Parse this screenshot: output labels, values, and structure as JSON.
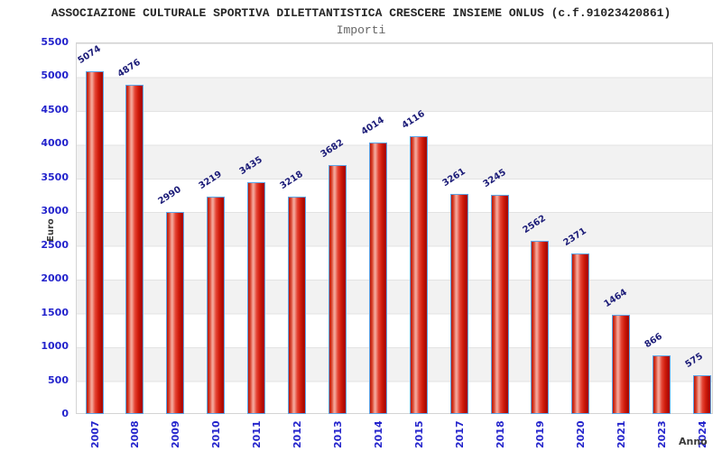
{
  "title": "ASSOCIAZIONE CULTURALE SPORTIVA DILETTANTISTICA CRESCERE INSIEME ONLUS (c.f.91023420861)",
  "subtitle": "Importi",
  "chart_data": {
    "type": "bar",
    "title": "Importi",
    "categories": [
      "2007",
      "2008",
      "2009",
      "2010",
      "2011",
      "2012",
      "2013",
      "2014",
      "2015",
      "2017",
      "2018",
      "2019",
      "2020",
      "2021",
      "2023",
      "2024"
    ],
    "values": [
      5074,
      4876,
      2990,
      3219,
      3435,
      3218,
      3682,
      4014,
      4116,
      3261,
      3245,
      2562,
      2371,
      1464,
      866,
      575
    ],
    "xlabel": "Anno",
    "ylabel": "Euro",
    "ylim": [
      0,
      5500
    ],
    "ytick_step": 500,
    "legend": "none",
    "grid": "horizontal alternating bands every 500",
    "colors": {
      "bar_fill": "#e03020",
      "bar_border": "#5da5e8",
      "value_label": "#1c1c78",
      "tick_label": "#2424cc",
      "axis_title": "#3a3a3a",
      "band_light": "#ffffff",
      "band_dark": "#f2f2f2",
      "plot_border": "#d4d4d4",
      "title_color": "#262626",
      "subtitle_color": "#666666"
    }
  }
}
